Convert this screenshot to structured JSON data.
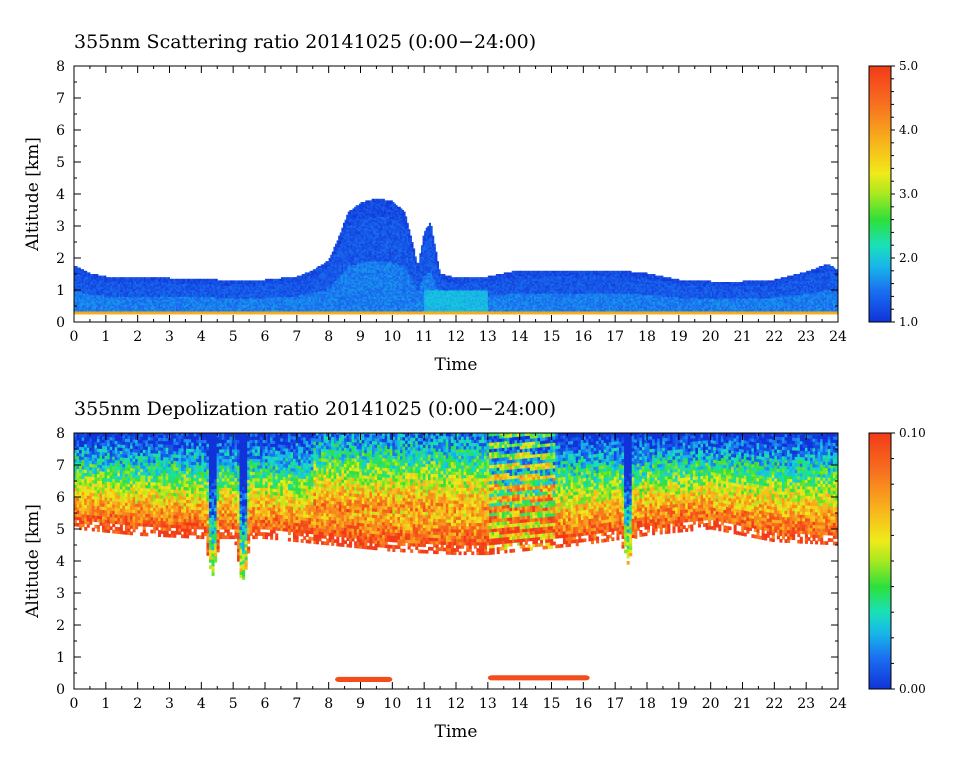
{
  "chart_data": [
    {
      "type": "heatmap",
      "title": "355nm Scattering ratio  20141025 (0:00−24:00)",
      "xlabel": "Time",
      "ylabel": "Altitude [km]",
      "xlim": [
        0,
        24
      ],
      "ylim": [
        0,
        8
      ],
      "x_ticks": [
        "0",
        "1",
        "2",
        "3",
        "4",
        "5",
        "6",
        "7",
        "8",
        "9",
        "10",
        "11",
        "12",
        "13",
        "14",
        "15",
        "16",
        "17",
        "18",
        "19",
        "20",
        "21",
        "22",
        "23",
        "24"
      ],
      "y_ticks": [
        "0",
        "1",
        "2",
        "3",
        "4",
        "5",
        "6",
        "7",
        "8"
      ],
      "colorbar": {
        "min": 1.0,
        "max": 5.0,
        "tick_labels": [
          "1.0",
          "2.0",
          "3.0",
          "4.0",
          "5.0"
        ],
        "tick_values": [
          1.0,
          2.0,
          3.0,
          4.0,
          5.0
        ]
      },
      "features": {
        "boundary_layer_top_km": {
          "x": [
            0,
            0.5,
            1,
            2,
            3,
            4,
            5,
            6,
            7,
            7.5,
            8,
            8.3,
            8.6,
            9,
            9.5,
            10,
            10.4,
            10.6,
            10.8,
            11.0,
            11.2,
            11.5,
            12,
            13,
            14,
            15,
            16,
            17,
            18,
            19,
            20,
            21,
            22,
            23,
            23.7,
            24
          ],
          "y": [
            1.75,
            1.5,
            1.4,
            1.4,
            1.35,
            1.35,
            1.25,
            1.3,
            1.4,
            1.6,
            1.9,
            2.6,
            3.4,
            3.7,
            3.85,
            3.75,
            3.4,
            2.6,
            1.7,
            2.8,
            3.1,
            1.5,
            1.35,
            1.4,
            1.6,
            1.6,
            1.6,
            1.6,
            1.5,
            1.3,
            1.25,
            1.25,
            1.3,
            1.55,
            1.8,
            1.6
          ]
        },
        "ground_layer_km": 0.3,
        "enhanced_region": {
          "x_range": [
            11.0,
            13.0
          ],
          "y_range": [
            0.3,
            1.0
          ],
          "value": 1.9
        },
        "typical_value_layer": 1.3
      }
    },
    {
      "type": "heatmap",
      "title": "355nm Depolization ratio  20141025 (0:00−24:00)",
      "xlabel": "Time",
      "ylabel": "Altitude [km]",
      "xlim": [
        0,
        24
      ],
      "ylim": [
        0,
        8
      ],
      "x_ticks": [
        "0",
        "1",
        "2",
        "3",
        "4",
        "5",
        "6",
        "7",
        "8",
        "9",
        "10",
        "11",
        "12",
        "13",
        "14",
        "15",
        "16",
        "17",
        "18",
        "19",
        "20",
        "21",
        "22",
        "23",
        "24"
      ],
      "y_ticks": [
        "0",
        "1",
        "2",
        "3",
        "4",
        "5",
        "6",
        "7",
        "8"
      ],
      "colorbar": {
        "min": 0.0,
        "max": 0.1,
        "tick_labels": [
          "0.00",
          "0.10"
        ],
        "tick_values": [
          0.0,
          0.1
        ]
      },
      "features": {
        "noise_floor_km": {
          "x": [
            0,
            2,
            4,
            6,
            8,
            10,
            12,
            13,
            16,
            18,
            20,
            22,
            24
          ],
          "y": [
            5.0,
            4.8,
            4.7,
            4.7,
            4.5,
            4.3,
            4.2,
            4.2,
            4.5,
            4.8,
            5.0,
            4.6,
            4.5
          ]
        },
        "low_depol_dips": [
          {
            "time": 4.35,
            "bottom_km": 3.4
          },
          {
            "time": 5.3,
            "bottom_km": 3.1
          },
          {
            "time": 17.4,
            "bottom_km": 3.9
          }
        ],
        "low_depol_layers": [
          {
            "x_range": [
              8.2,
              10.0
            ],
            "altitude_km": 0.3,
            "value": 0.1
          },
          {
            "x_range": [
              13.0,
              16.2
            ],
            "altitude_km": 0.35,
            "value": 0.1
          }
        ]
      }
    }
  ]
}
